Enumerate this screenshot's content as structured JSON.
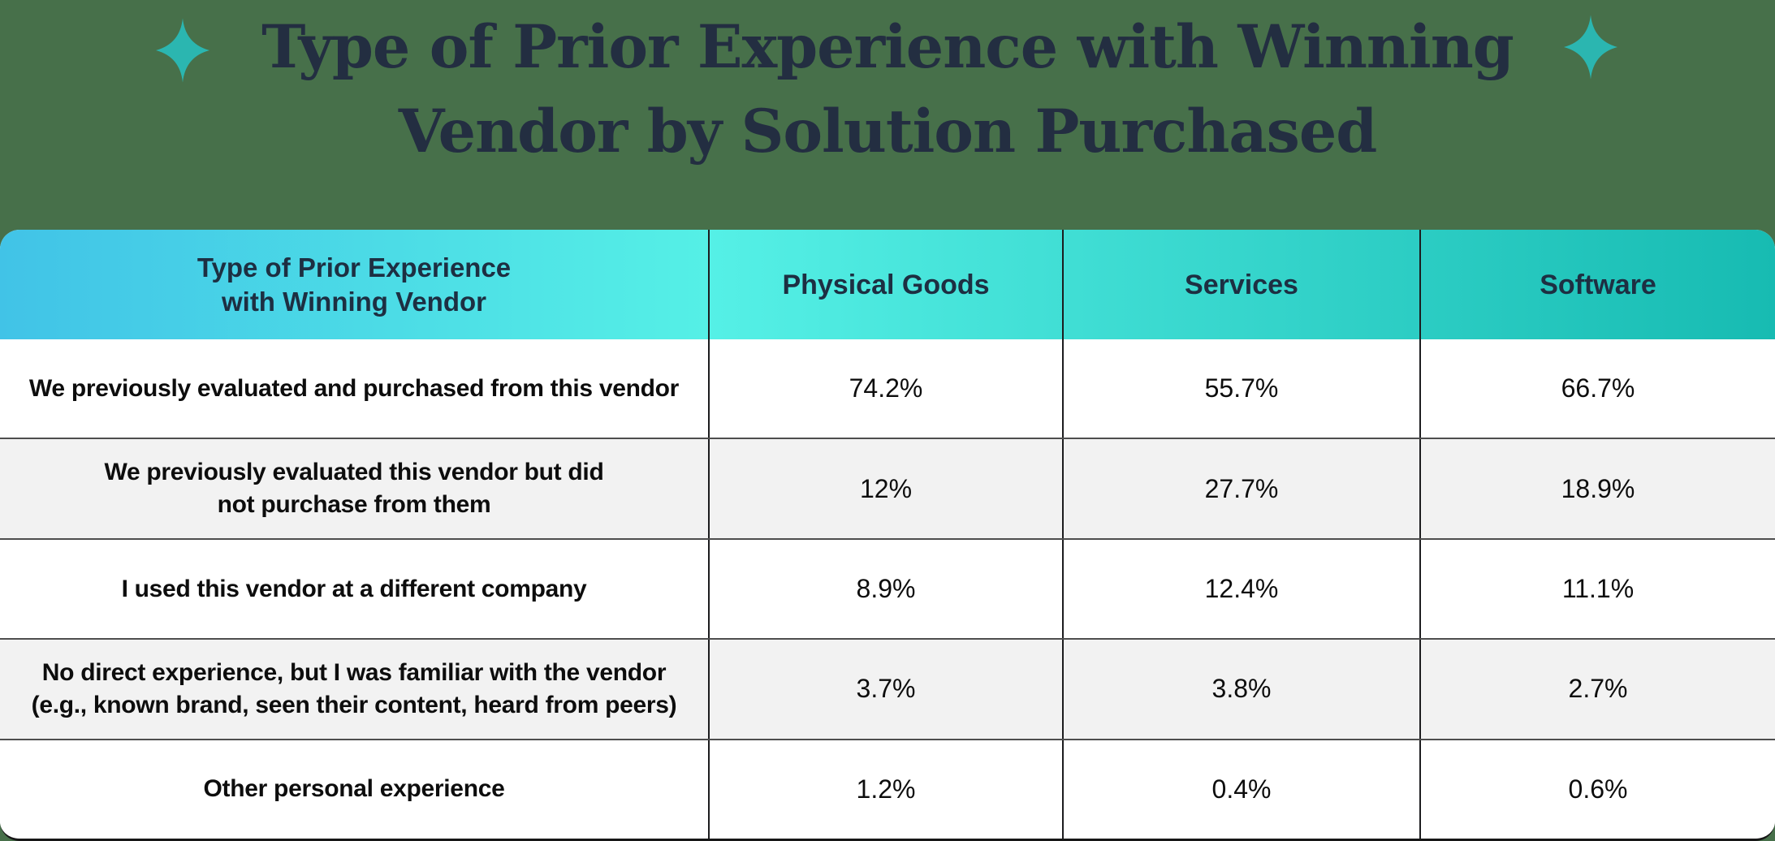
{
  "title": {
    "line1": "Type of Prior Experience with Winning",
    "line2": "Vendor by Solution Purchased"
  },
  "icons": {
    "left": "sparkle-icon",
    "right": "sparkle-icon"
  },
  "colors": {
    "background_green": "#47704a",
    "title_text": "#232e41",
    "header_text": "#1d2f42",
    "header_gradient_left": "#41c3e7",
    "header_gradient_mid": "#55f0e6",
    "header_gradient_right": "#17bbb2",
    "sparkle_teal": "#2bb6b0",
    "row_alt_gray": "#f2f2f2",
    "body_text": "#0d0d0d",
    "column_divider": "#1c1c1e",
    "row_divider": "#4e4e4e"
  },
  "chart_data": {
    "type": "table",
    "title": "Type of Prior Experience with Winning Vendor by Solution Purchased",
    "row_header_label_lines": [
      "Type of Prior Experience",
      "with Winning Vendor"
    ],
    "row_header_label": "Type of Prior Experience with Winning Vendor",
    "columns": [
      "Physical Goods",
      "Services",
      "Software"
    ],
    "rows": [
      {
        "label": "We previously evaluated and purchased from this vendor",
        "label_lines": [
          "We previously evaluated and purchased from this vendor"
        ],
        "values": [
          74.2,
          55.7,
          66.7
        ],
        "display": [
          "74.2%",
          "55.7%",
          "66.7%"
        ]
      },
      {
        "label": "We previously evaluated this vendor but did not purchase from them",
        "label_lines": [
          "We previously evaluated this vendor but did",
          "not purchase from them"
        ],
        "values": [
          12,
          27.7,
          18.9
        ],
        "display": [
          "12%",
          "27.7%",
          "18.9%"
        ]
      },
      {
        "label": "I used this vendor at a different company",
        "label_lines": [
          "I used this vendor at a different company"
        ],
        "values": [
          8.9,
          12.4,
          11.1
        ],
        "display": [
          "8.9%",
          "12.4%",
          "11.1%"
        ]
      },
      {
        "label": "No direct experience, but I was familiar with the vendor (e.g., known brand, seen their content, heard from peers)",
        "label_lines": [
          "No direct experience, but I was familiar with the vendor",
          "(e.g., known brand, seen their content, heard from peers)"
        ],
        "values": [
          3.7,
          3.8,
          2.7
        ],
        "display": [
          "3.7%",
          "3.8%",
          "2.7%"
        ]
      },
      {
        "label": "Other personal experience",
        "label_lines": [
          "Other personal experience"
        ],
        "values": [
          1.2,
          0.4,
          0.6
        ],
        "display": [
          "1.2%",
          "0.4%",
          "0.6%"
        ]
      }
    ]
  }
}
